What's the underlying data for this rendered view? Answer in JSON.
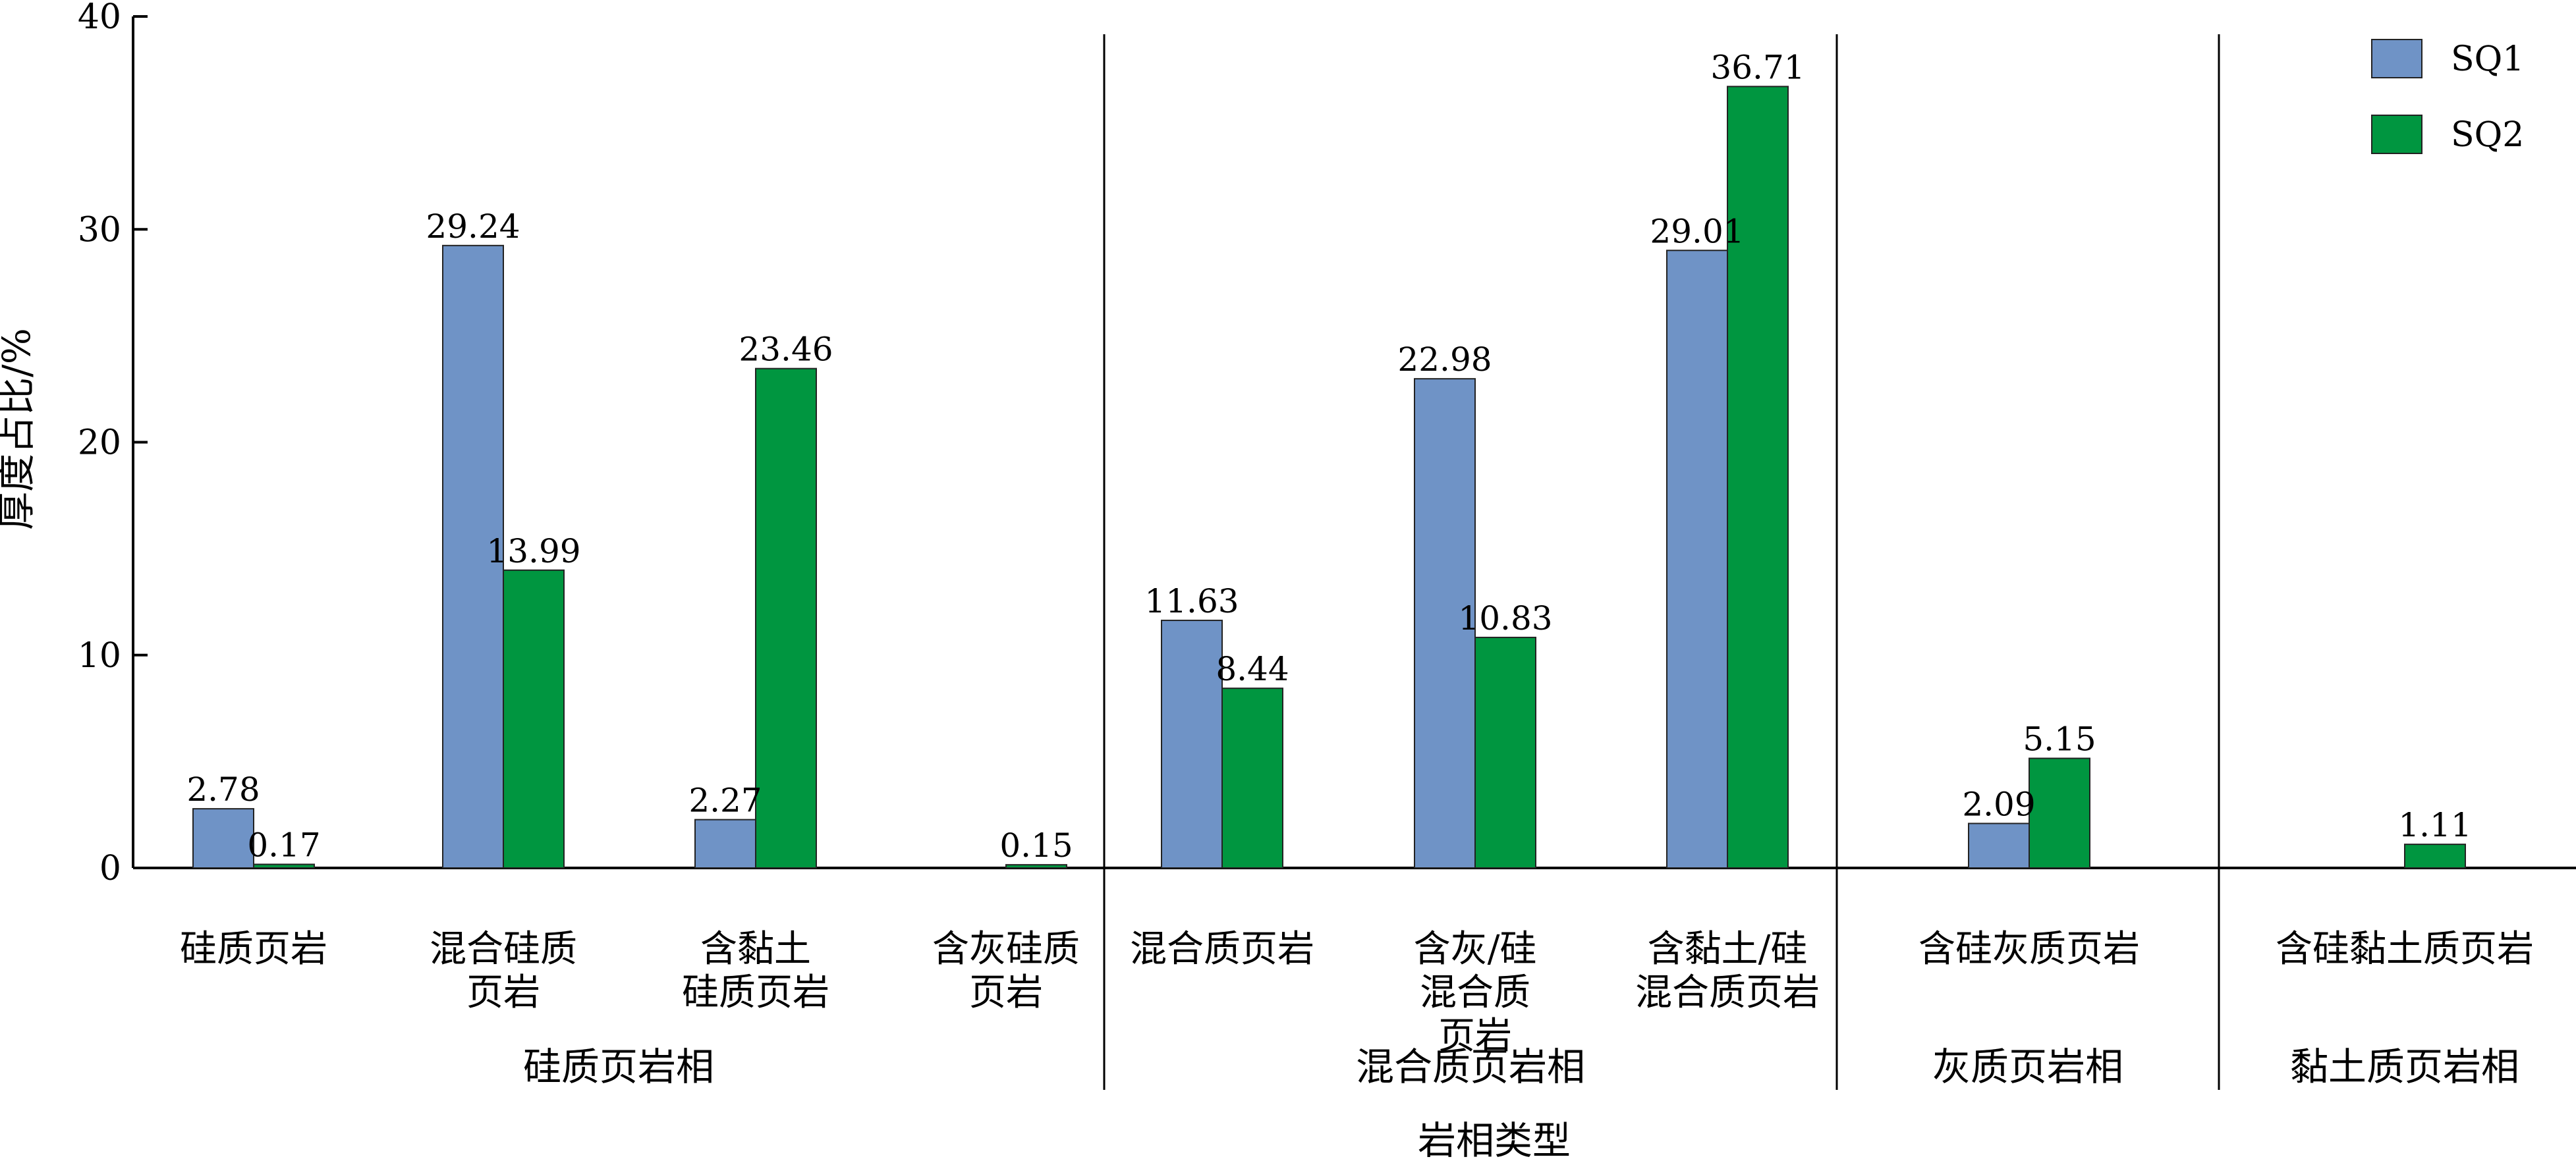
{
  "chart_data": {
    "type": "bar",
    "title": "",
    "ylabel": "厚度占比/%",
    "xlabel": "岩相类型",
    "ylim": [
      0,
      40
    ],
    "yticks": [
      0,
      10,
      20,
      30,
      40
    ],
    "grid": false,
    "legend_position": "top-right",
    "categories": [
      [
        "硅质页岩"
      ],
      [
        "混合硅质",
        "页岩"
      ],
      [
        "含黏土",
        "硅质页岩"
      ],
      [
        "含灰硅质",
        "页岩"
      ],
      [
        "混合质页岩"
      ],
      [
        "含灰/硅",
        "混合质",
        "页岩"
      ],
      [
        "含黏土/硅",
        "混合质页岩"
      ],
      [
        "含硅灰质页岩"
      ],
      [
        "含硅黏土质页岩"
      ]
    ],
    "groups": [
      {
        "label": "硅质页岩相",
        "categories": [
          0,
          1,
          2,
          3
        ]
      },
      {
        "label": "混合质页岩相",
        "categories": [
          4,
          5,
          6
        ]
      },
      {
        "label": "灰质页岩相",
        "categories": [
          7
        ]
      },
      {
        "label": "黏土质页岩相",
        "categories": [
          8
        ]
      }
    ],
    "series": [
      {
        "name": "SQ1",
        "color": "#6f93c6",
        "values": [
          2.78,
          29.24,
          2.27,
          null,
          11.63,
          22.98,
          29.01,
          2.09,
          null
        ],
        "labels": [
          "2.78",
          "29.24",
          "2.27",
          "",
          "11.63",
          "22.98",
          "29.01",
          "2.09",
          ""
        ]
      },
      {
        "name": "SQ2",
        "color": "#009640",
        "values": [
          0.17,
          13.99,
          23.46,
          0.15,
          8.44,
          10.83,
          36.71,
          5.15,
          1.11
        ],
        "labels": [
          "0.17",
          "13.99",
          "23.46",
          "0.15",
          "8.44",
          "10.83",
          "36.71",
          "5.15",
          "1.11"
        ]
      }
    ]
  }
}
